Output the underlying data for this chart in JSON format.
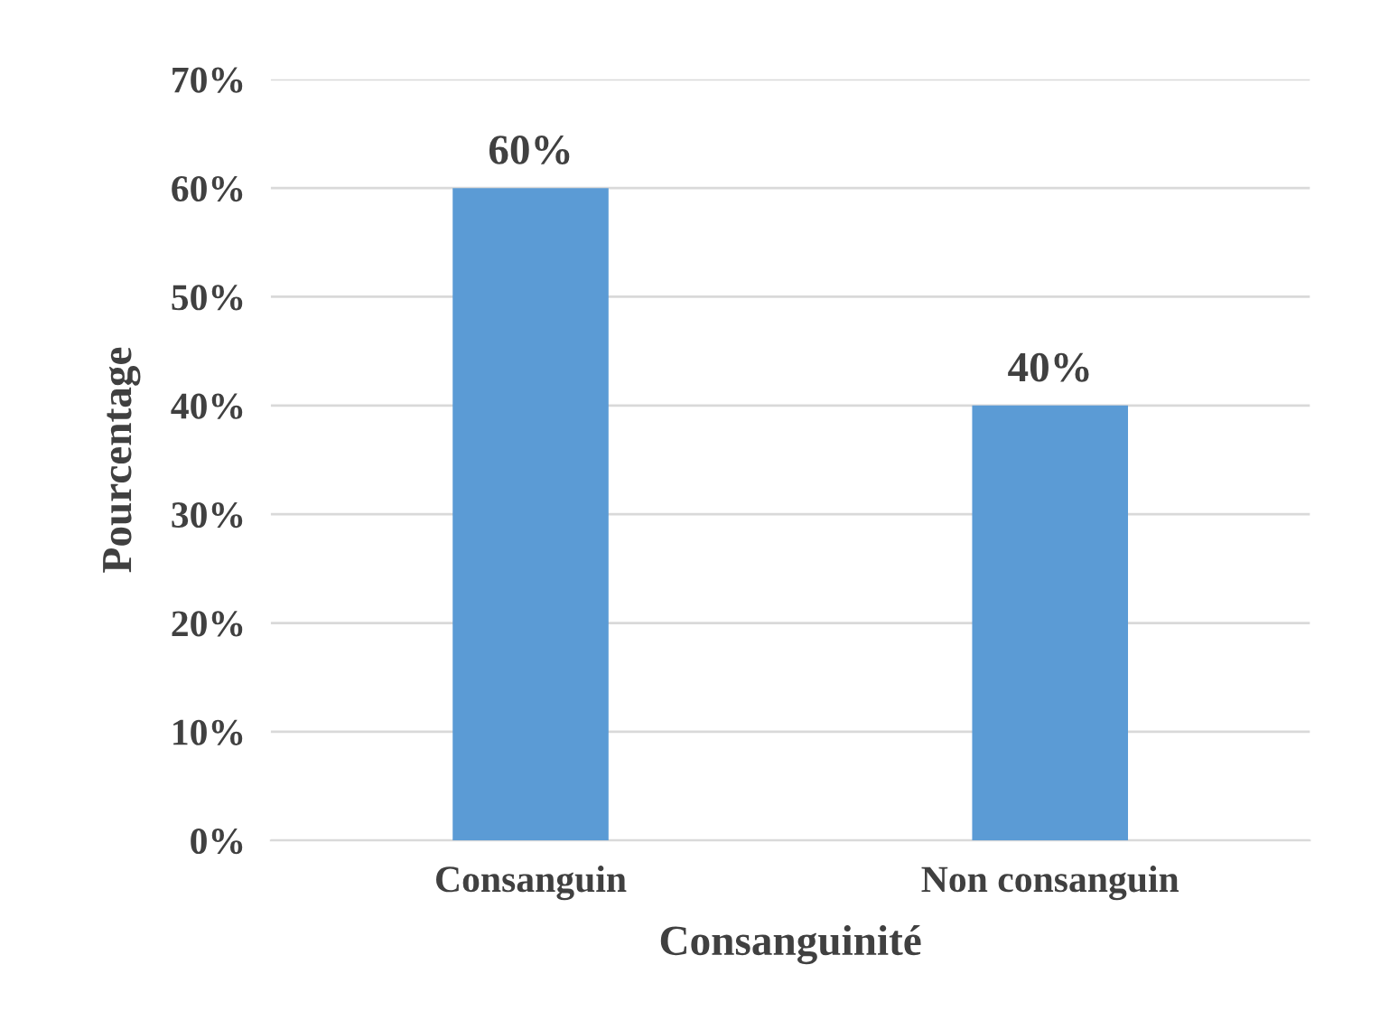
{
  "chart_data": {
    "type": "bar",
    "xlabel": "Consanguinité",
    "ylabel": "Pourcentage",
    "categories": [
      "Consanguin",
      "Non consanguin"
    ],
    "values": [
      60,
      40
    ],
    "color": "#5b9bd5",
    "value_labels": [
      "60%",
      "40%"
    ],
    "ylim": [
      0,
      70
    ],
    "yticks": [
      {
        "value": 0,
        "label": "0%"
      },
      {
        "value": 10,
        "label": "10%"
      },
      {
        "value": 20,
        "label": "20%"
      },
      {
        "value": 30,
        "label": "30%"
      },
      {
        "value": 40,
        "label": "40%"
      },
      {
        "value": 50,
        "label": "50%"
      },
      {
        "value": 60,
        "label": "60%"
      },
      {
        "value": 70,
        "label": "70%"
      }
    ],
    "grid": "y",
    "legend": false
  }
}
